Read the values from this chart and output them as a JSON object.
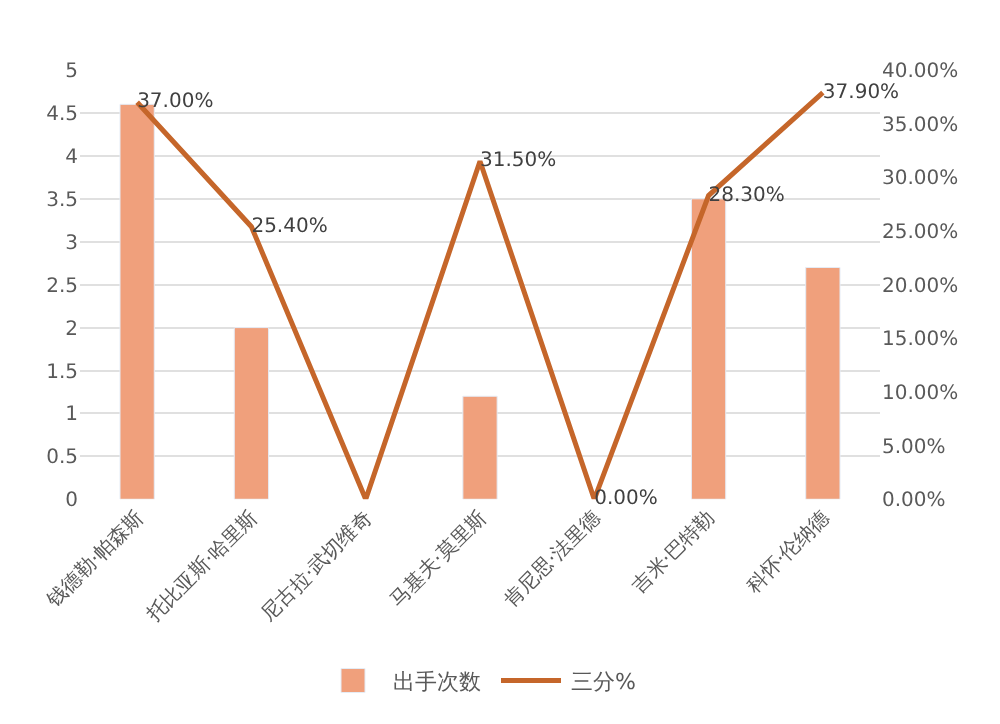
{
  "chart_data": {
    "type": "bar",
    "categories": [
      "钱德勒·帕森斯",
      "托比亚斯·哈里斯",
      "尼古拉·武切维奇",
      "马基夫·莫里斯",
      "肯尼思·法里德",
      "吉米·巴特勒",
      "科怀·伦纳德"
    ],
    "series": [
      {
        "name": "出手次数",
        "color": "#f0a07c",
        "values": [
          4.6,
          2.0,
          null,
          1.2,
          null,
          3.5,
          2.7
        ]
      },
      {
        "name": "三分%",
        "type": "line",
        "axis": "y2",
        "color": "#c5662a",
        "values": [
          37.0,
          25.4,
          0,
          31.5,
          0,
          28.3,
          37.9
        ],
        "value_labels": [
          "37.00%",
          "25.40%",
          null,
          "31.50%",
          "0.00%",
          "28.30%",
          "37.90%"
        ]
      }
    ],
    "ylim": [
      0,
      5
    ],
    "yticks": [
      0,
      0.5,
      1,
      1.5,
      2,
      2.5,
      3,
      3.5,
      4,
      4.5,
      5
    ],
    "y2lim": [
      0,
      40
    ],
    "y2ticks": [
      {
        "value": 0,
        "label": "0.00%"
      },
      {
        "value": 5,
        "label": "5.00%"
      },
      {
        "value": 10,
        "label": "10.00%"
      },
      {
        "value": 15,
        "label": "15.00%"
      },
      {
        "value": 20,
        "label": "20.00%"
      },
      {
        "value": 25,
        "label": "25.00%"
      },
      {
        "value": 30,
        "label": "30.00%"
      },
      {
        "value": 35,
        "label": "35.00%"
      },
      {
        "value": 40,
        "label": "40.00%"
      }
    ],
    "grid": "y",
    "legend": "bottom",
    "marker": "none",
    "line_style": "solid"
  }
}
